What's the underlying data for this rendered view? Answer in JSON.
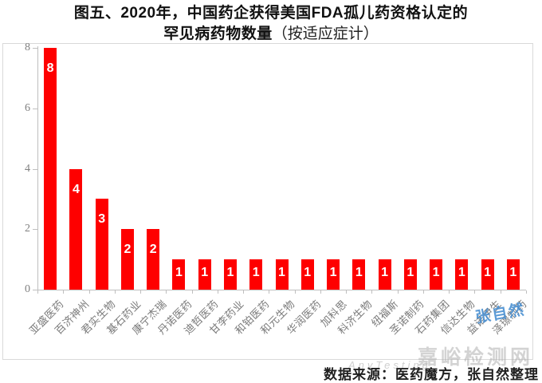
{
  "title": {
    "line1": "图五、2020年，中国药企获得美国FDA孤儿药资格认定的",
    "line2_bold": "罕见病药物数量",
    "line2_normal": "（按适应症计）"
  },
  "source_note": "数据来源：医药魔方，张自然整理",
  "watermarks": {
    "blue_text": "张自然",
    "gray_text": "嘉峪检测网",
    "gray_subtext": "AnyTesting"
  },
  "colors": {
    "bar": "#fe0000",
    "bar_value_label": "#ffffff",
    "axis_line": "#bfbfbf",
    "axis_tick_text": "#808080",
    "category_text": "#7a7a7a",
    "watermark_blue": "#4a90d2",
    "watermark_gray": "#afafaf",
    "title_text": "#111111"
  },
  "chart_data": {
    "type": "bar",
    "title": "2020年中国药企获得美国FDA孤儿药资格认定的罕见病药物数量（按适应症计）",
    "categories": [
      "亚盛医药",
      "百济神州",
      "君实生物",
      "基石药业",
      "康宁杰瑞",
      "丹诺医药",
      "迪哲医药",
      "甘李药业",
      "和铂医药",
      "和元生物",
      "华润医药",
      "加科思",
      "科济生物",
      "纽福斯",
      "圣诺制药",
      "石药集团",
      "信达生物",
      "益诺伊生",
      "泽璟制药"
    ],
    "values": [
      8,
      4,
      3,
      2,
      2,
      1,
      1,
      1,
      1,
      1,
      1,
      1,
      1,
      1,
      1,
      1,
      1,
      1,
      1
    ],
    "xlabel": "",
    "ylabel": "",
    "ylim": [
      0,
      8
    ],
    "yticks": [
      0,
      2,
      4,
      6,
      8
    ],
    "grid": false,
    "legend": false,
    "data_labels": true
  }
}
